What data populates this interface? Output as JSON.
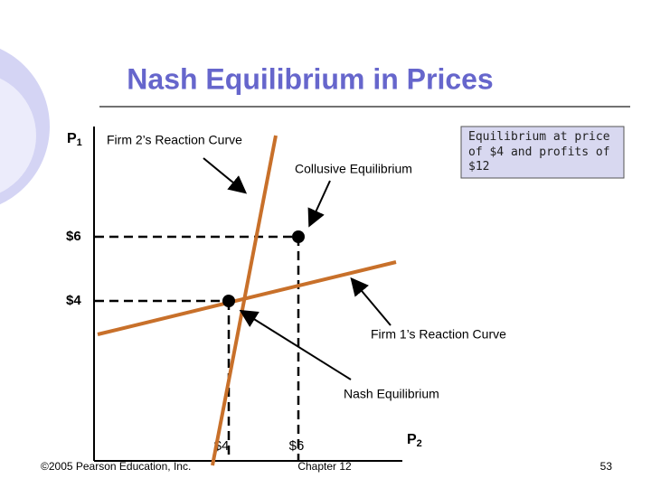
{
  "header": {
    "title": "Nash Equilibrium in Prices"
  },
  "axes": {
    "y_label": {
      "text": "P",
      "sub": "1"
    },
    "x_label": {
      "text": "P",
      "sub": "2"
    },
    "y_ticks": [
      "$6",
      "$4"
    ],
    "x_ticks": [
      "$4",
      "$6"
    ]
  },
  "annotations": {
    "firm2": "Firm 2’s Reaction Curve",
    "collusive": "Collusive Equilibrium",
    "box": [
      "Equilibrium at price",
      "of $4 and profits of",
      "$12"
    ],
    "firm1": "Firm 1’s Reaction Curve",
    "nash": "Nash Equilibrium"
  },
  "footer": {
    "copyright": "©2005 Pearson Education, Inc.",
    "chapter": "Chapter 12",
    "page": "53"
  }
}
